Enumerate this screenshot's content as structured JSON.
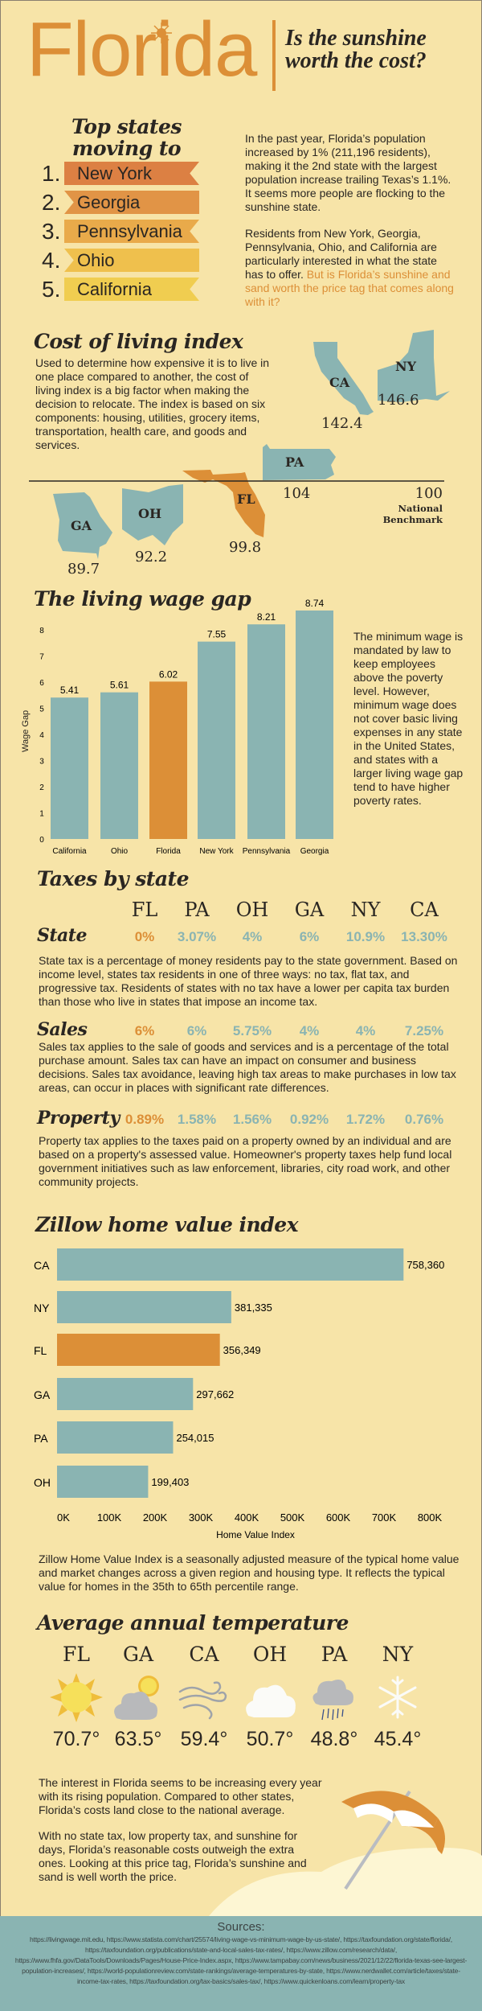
{
  "header": {
    "logo": "Florida",
    "subtitle": "Is the sunshine worth the cost?"
  },
  "top_states": {
    "heading": "Top states moving to Florida",
    "items": [
      {
        "rank": "1.",
        "name": "New York",
        "color": "#dc8043"
      },
      {
        "rank": "2.",
        "name": "Georgia",
        "color": "#e19446"
      },
      {
        "rank": "3.",
        "name": "Pennsylvania",
        "color": "#e9aa4a"
      },
      {
        "rank": "4.",
        "name": "Ohio",
        "color": "#efc04d"
      },
      {
        "rank": "5.",
        "name": "California",
        "color": "#f0cd50"
      }
    ],
    "para1": "In the past year, Florida’s population increased by 1% (211,196 residents), making it the 2nd state with the largest population increase trailing Texas’s 1.1%. It seems more people are flocking to the sunshine state.",
    "para2_start": "Residents from New York, Georgia, Pennsylvania, Ohio, and California are particularly interested in what the state has to offer. ",
    "para2_highlight": "But is Florida’s sunshine and sand worth the price tag that comes along with it?"
  },
  "cost_of_living": {
    "heading": "Cost of living index",
    "text": "Used to determine how expensive it is to live in one place compared to another, the cost of living index is a big factor when making the decision to relocate. The index is based on six components: housing, utilities, grocery items, transportation, health care, and goods and services.",
    "states": [
      {
        "abbr": "CA",
        "value": "142.4"
      },
      {
        "abbr": "NY",
        "value": "146.6"
      },
      {
        "abbr": "PA",
        "value": "104"
      },
      {
        "abbr": "FL",
        "value": "99.8"
      },
      {
        "abbr": "OH",
        "value": "92.2"
      },
      {
        "abbr": "GA",
        "value": "89.7"
      }
    ],
    "benchmark_value": "100",
    "benchmark_label": "National Benchmark"
  },
  "chart_data": [
    {
      "type": "bar",
      "title": "The living wage gap",
      "ylabel": "Wage Gap",
      "xlabel": "",
      "categories": [
        "California",
        "Ohio",
        "Florida",
        "New York",
        "Pennsylvania",
        "Georgia"
      ],
      "values": [
        5.41,
        5.61,
        6.02,
        7.55,
        8.21,
        8.74
      ],
      "value_labels": [
        "5.41",
        "5.61",
        "6.02",
        "7.55",
        "8.21",
        "8.74"
      ],
      "highlight": "Florida",
      "ylim": [
        0,
        8
      ],
      "yticks": [
        "0",
        "1",
        "2",
        "3",
        "4",
        "5",
        "6",
        "7",
        "8"
      ],
      "grid": false
    },
    {
      "type": "bar",
      "orientation": "horizontal",
      "title": "Zillow home value index",
      "xlabel": "Home Value Index",
      "categories": [
        "CA",
        "NY",
        "FL",
        "GA",
        "PA",
        "OH"
      ],
      "values": [
        758360,
        381335,
        356349,
        297662,
        254015,
        199403
      ],
      "value_labels": [
        "758,360",
        "381,335",
        "356,349",
        "297,662",
        "254,015",
        "199,403"
      ],
      "highlight": "FL",
      "xlim": [
        0,
        800000
      ],
      "xticks": [
        "0K",
        "100K",
        "200K",
        "300K",
        "400K",
        "500K",
        "600K",
        "700K",
        "800K"
      ],
      "grid": false
    }
  ],
  "wage_text": "The minimum wage is mandated by law to keep employees above the poverty level. However, minimum wage does not cover basic living expenses in any state in the United States, and states with a larger living wage gap tend to have higher poverty rates.",
  "taxes": {
    "heading": "Taxes by state",
    "columns": [
      "FL",
      "PA",
      "OH",
      "GA",
      "NY",
      "CA"
    ],
    "rows": [
      {
        "label": "State",
        "values": [
          "0%",
          "3.07%",
          "4%",
          "6%",
          "10.9%",
          "13.30%"
        ],
        "text": "State tax is a percentage of money residents pay to the state government. Based on income level, states tax residents in one of three ways: no tax, flat tax, and progressive tax. Residents of states with no tax have a lower per capita tax burden than those who live in states that impose an income tax."
      },
      {
        "label": "Sales",
        "values": [
          "6%",
          "6%",
          "5.75%",
          "4%",
          "4%",
          "7.25%"
        ],
        "text": "Sales tax applies to the sale of goods and services and is a percentage of the total purchase amount. Sales tax can have an impact on consumer and business decisions. Sales tax avoidance, leaving high tax areas to make purchases in low tax areas, can occur in places with significant rate differences."
      },
      {
        "label": "Property",
        "values": [
          "0.89%",
          "1.58%",
          "1.56%",
          "0.92%",
          "1.72%",
          "0.76%"
        ],
        "text": "Property tax applies to the taxes paid on a property owned by an individual and are based on a property's assessed value. Homeowner's property taxes help fund local government initiatives such as law enforcement, libraries, city road work, and other community projects."
      }
    ]
  },
  "zillow_text": "Zillow Home Value Index is a seasonally adjusted measure of the typical home value and market changes across a given region and housing type. It reflects the typical value for homes in the 35th to 65th percentile range.",
  "temperature": {
    "heading": "Average annual temperature",
    "items": [
      {
        "state": "FL",
        "icon": "sun-icon",
        "value": "70.7°"
      },
      {
        "state": "GA",
        "icon": "partly-cloudy-icon",
        "value": "63.5°"
      },
      {
        "state": "CA",
        "icon": "wind-icon",
        "value": "59.4°"
      },
      {
        "state": "OH",
        "icon": "cloud-icon",
        "value": "50.7°"
      },
      {
        "state": "PA",
        "icon": "rain-icon",
        "value": "48.8°"
      },
      {
        "state": "NY",
        "icon": "snowflake-icon",
        "value": "45.4°"
      }
    ]
  },
  "conclusion": {
    "para1": "The interest in Florida seems to be increasing every year with its rising population. Compared to other states, Florida’s costs land close to the national average.",
    "para2": "With no state tax, low property tax, and sunshine for days, Florida’s reasonable costs outweigh the extra ones. Looking at this price tag, Florida’s sunshine and sand is well worth the price."
  },
  "sources": {
    "heading": "Sources:",
    "text": "https://livingwage.mit.edu, https://www.statista.com/chart/25574/living-wage-vs-minimum-wage-by-us-state/, https://taxfoundation.org/state/florida/, https://taxfoundation.org/publications/state-and-local-sales-tax-rates/, https://www.zillow.com/research/data/, https://www.fhfa.gov/DataTools/Downloads/Pages/House-Price-Index.aspx, https://www.tampabay.com/news/business/2021/12/22/florida-texas-see-largest-population-increases/, https://world-populationreview.com/state-rankings/average-temperatures-by-state, https://www.nerdwallet.com/article/taxes/state-income-tax-rates, https://taxfoundation.org/tax-basics/sales-tax/, https://www.quickenloans.com/learn/property-tax"
  },
  "colors": {
    "bg": "#f7e4a8",
    "orange": "#dc8f37",
    "teal": "#8ab4b2",
    "dark": "#2a2622"
  }
}
